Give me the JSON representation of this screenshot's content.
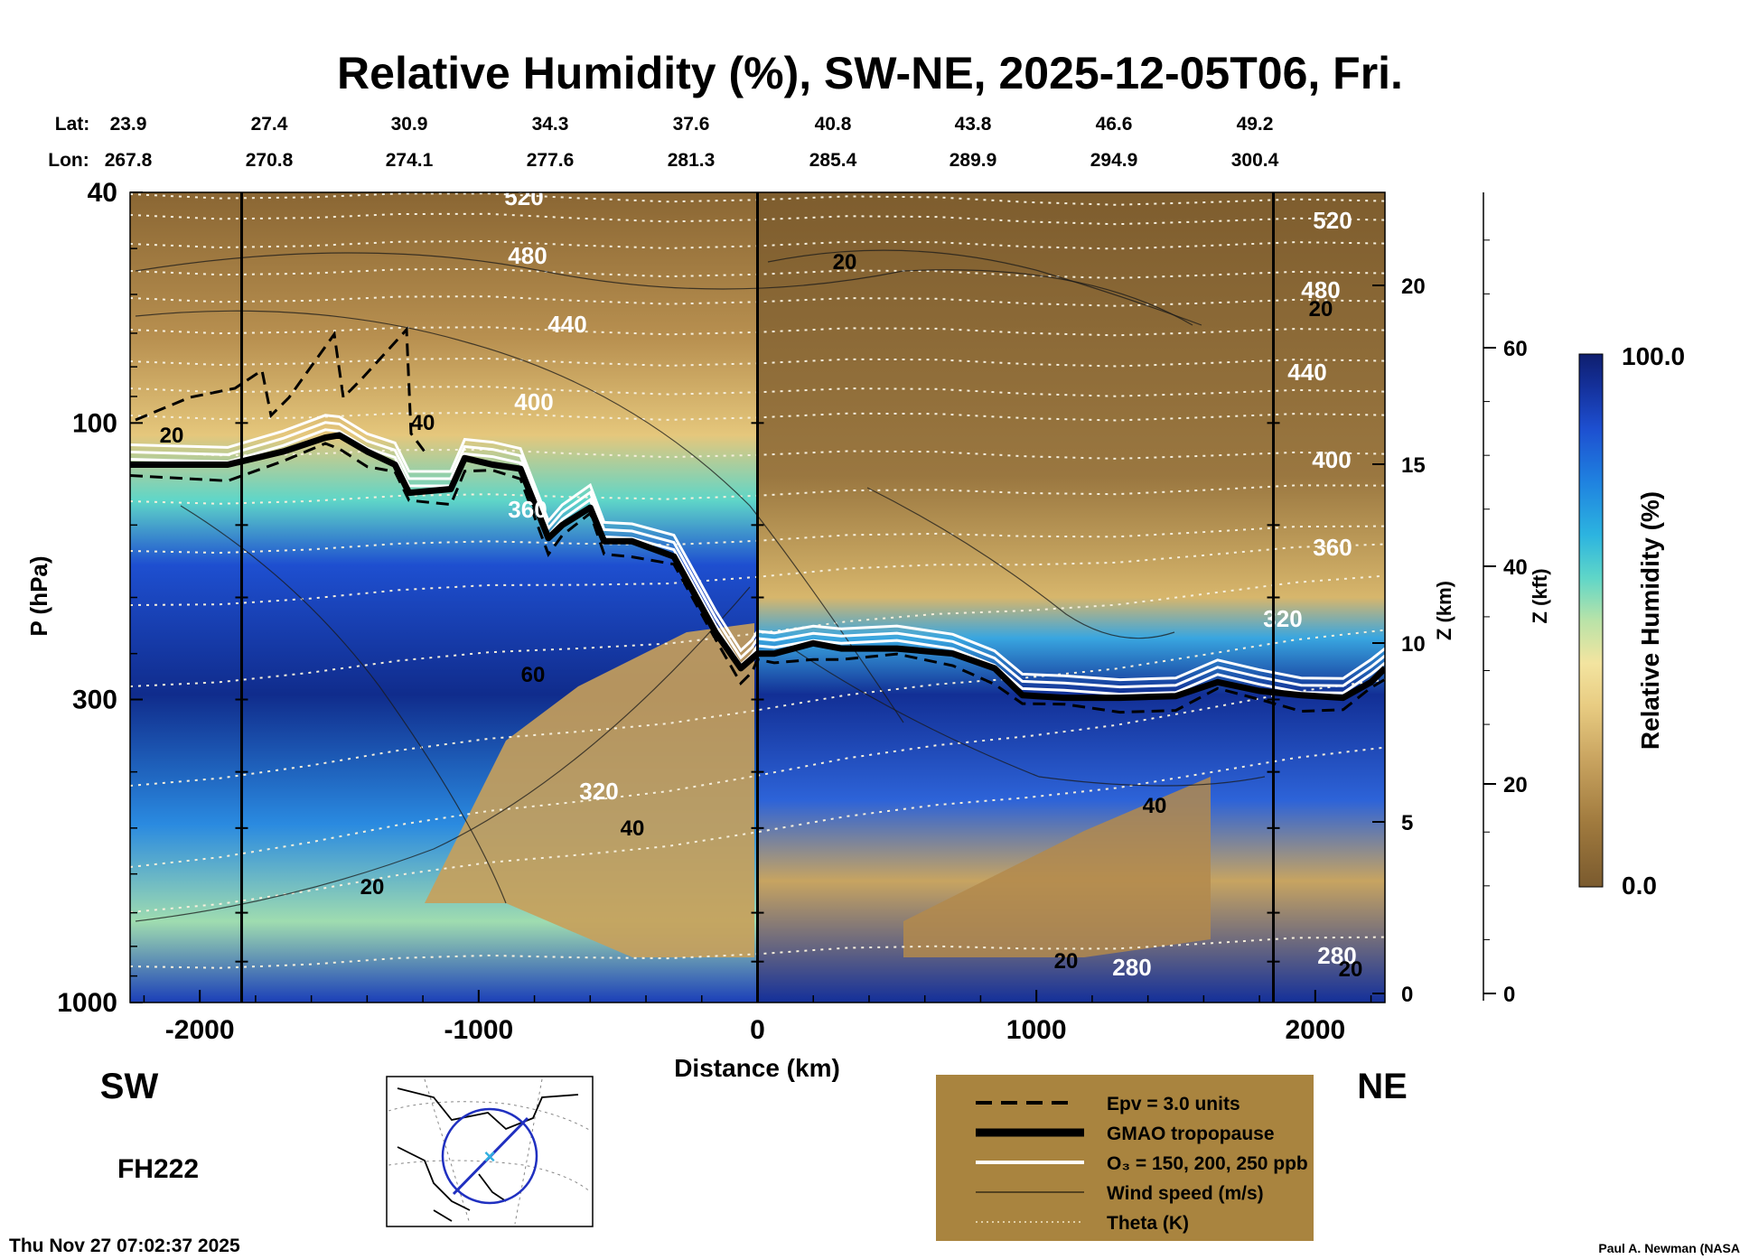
{
  "title": "Relative Humidity (%), SW-NE, 2025-12-05T06, Fri.",
  "lat": {
    "label": "Lat:",
    "values": [
      "23.9",
      "27.4",
      "30.9",
      "34.3",
      "37.6",
      "40.8",
      "43.8",
      "46.6",
      "49.2"
    ]
  },
  "lon": {
    "label": "Lon:",
    "values": [
      "267.8",
      "270.8",
      "274.1",
      "277.6",
      "281.3",
      "285.4",
      "289.9",
      "294.9",
      "300.4"
    ]
  },
  "left_directional": "SW",
  "right_directional": "NE",
  "forecast_hour": "FH222",
  "timestamp": "Thu Nov 27 07:02:37 2025",
  "credit": "Paul A. Newman (NASA",
  "colorbar": {
    "label": "Relative Humidity (%)",
    "max_label": "100.0",
    "min_label": "0.0",
    "colors": [
      "#7a5a2e",
      "#a07a3e",
      "#c9a460",
      "#e8cc82",
      "#f3e4a0",
      "#b9e3a8",
      "#5fd6c8",
      "#2cb4e0",
      "#1f82e0",
      "#1d4fd0",
      "#14309a",
      "#0f1f6e"
    ]
  },
  "legend": {
    "background": "#a9843f",
    "items": [
      {
        "label": "Epv = 3.0 units",
        "style": "dashed"
      },
      {
        "label": "GMAO tropopause",
        "style": "thick"
      },
      {
        "label": "O₃ = 150, 200, 250 ppb",
        "style": "white"
      },
      {
        "label": "Wind speed (m/s)",
        "style": "thin"
      },
      {
        "label": "Theta (K)",
        "style": "dotted"
      }
    ]
  },
  "chart_data": {
    "type": "heatmap",
    "variable": "Relative Humidity (%)",
    "xlabel": "Distance (km)",
    "ylabel": "P (hPa)",
    "xlim": [
      -2250,
      2250
    ],
    "x_ticks": [
      -2000,
      -1000,
      0,
      1000,
      2000
    ],
    "y_scale": "log",
    "ylim": [
      1000,
      40
    ],
    "y_ticks": [
      40,
      100,
      300,
      1000
    ],
    "z_km_label": "Z (km)",
    "z_km_ticks": [
      0,
      5,
      10,
      15,
      20
    ],
    "z_kft_label": "Z (kft)",
    "z_kft_ticks": [
      0,
      20,
      40,
      60
    ],
    "vertical_lines_km": [
      -1850,
      0,
      1850
    ],
    "theta_contour_labels": [
      "520",
      "480",
      "440",
      "400",
      "360",
      "320",
      "280"
    ],
    "wind_contour_labels": [
      "20",
      "40",
      "60"
    ],
    "tropopause": {
      "x": [
        -2250,
        -1900,
        -1700,
        -1550,
        -1500,
        -1400,
        -1300,
        -1250,
        -1100,
        -1050,
        -950,
        -850,
        -750,
        -700,
        -600,
        -550,
        -450,
        -300,
        -150,
        -60,
        -20,
        0,
        60,
        200,
        300,
        500,
        700,
        850,
        950,
        1100,
        1300,
        1500,
        1650,
        1800,
        1950,
        2100,
        2200,
        2250
      ],
      "p": [
        118,
        118,
        112,
        106,
        105,
        112,
        118,
        132,
        130,
        115,
        118,
        120,
        158,
        150,
        140,
        160,
        160,
        170,
        230,
        265,
        255,
        250,
        250,
        240,
        245,
        245,
        250,
        265,
        295,
        298,
        298,
        296,
        280,
        290,
        295,
        298,
        280,
        265
      ]
    }
  }
}
